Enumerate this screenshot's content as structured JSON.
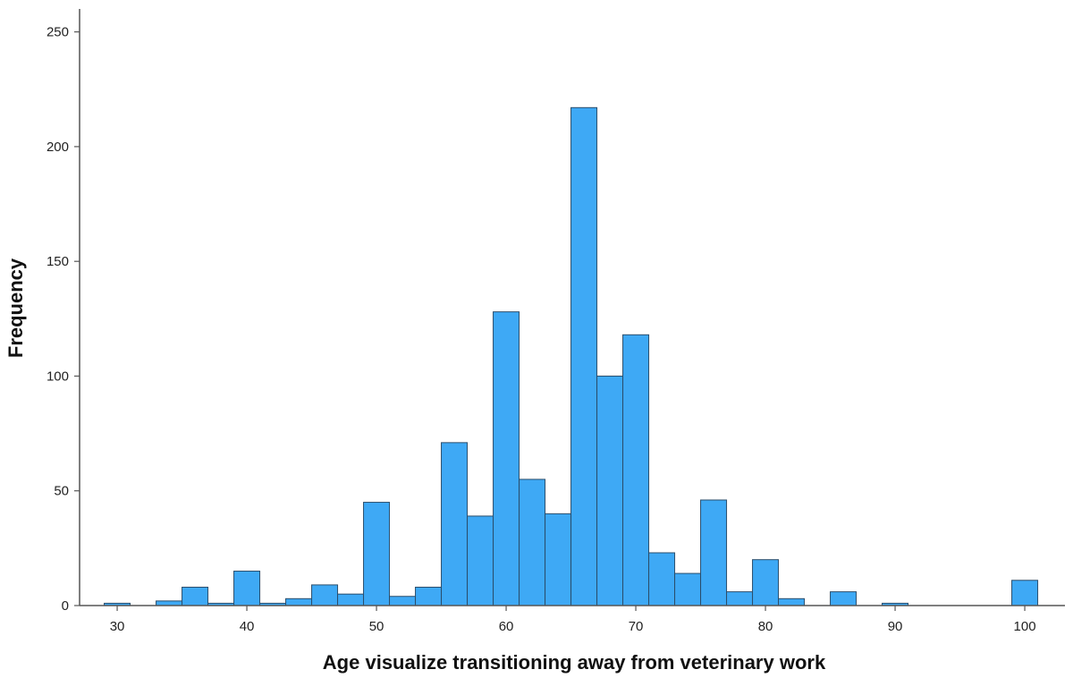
{
  "chart_data": {
    "type": "bar",
    "title": "",
    "xlabel": "Age visualize transitioning away from veterinary work",
    "ylabel": "Frequency",
    "bar_color": "#3ea9f5",
    "bar_edge_color": "#2b4d6b",
    "grid": false,
    "legend": "none",
    "xlim": [
      27.1,
      103.1
    ],
    "ylim": [
      0,
      260
    ],
    "x_ticks": [
      30,
      40,
      50,
      60,
      70,
      80,
      90,
      100
    ],
    "y_ticks": [
      0,
      50,
      100,
      150,
      200,
      250
    ],
    "bin_width": 2,
    "bins": [
      {
        "start": 29.0,
        "value": 1
      },
      {
        "start": 33.0,
        "value": 2
      },
      {
        "start": 35.0,
        "value": 8
      },
      {
        "start": 37.0,
        "value": 1
      },
      {
        "start": 39.0,
        "value": 15
      },
      {
        "start": 41.0,
        "value": 1
      },
      {
        "start": 43.0,
        "value": 3
      },
      {
        "start": 45.0,
        "value": 9
      },
      {
        "start": 47.0,
        "value": 5
      },
      {
        "start": 49.0,
        "value": 45
      },
      {
        "start": 51.0,
        "value": 4
      },
      {
        "start": 53.0,
        "value": 8
      },
      {
        "start": 55.0,
        "value": 71
      },
      {
        "start": 57.0,
        "value": 39
      },
      {
        "start": 59.0,
        "value": 128
      },
      {
        "start": 61.0,
        "value": 55
      },
      {
        "start": 63.0,
        "value": 40
      },
      {
        "start": 65.0,
        "value": 217
      },
      {
        "start": 67.0,
        "value": 100
      },
      {
        "start": 69.0,
        "value": 118
      },
      {
        "start": 71.0,
        "value": 23
      },
      {
        "start": 73.0,
        "value": 14
      },
      {
        "start": 75.0,
        "value": 46
      },
      {
        "start": 77.0,
        "value": 6
      },
      {
        "start": 79.0,
        "value": 20
      },
      {
        "start": 81.0,
        "value": 3
      },
      {
        "start": 85.0,
        "value": 6
      },
      {
        "start": 89.0,
        "value": 1
      },
      {
        "start": 99.0,
        "value": 11
      }
    ]
  }
}
